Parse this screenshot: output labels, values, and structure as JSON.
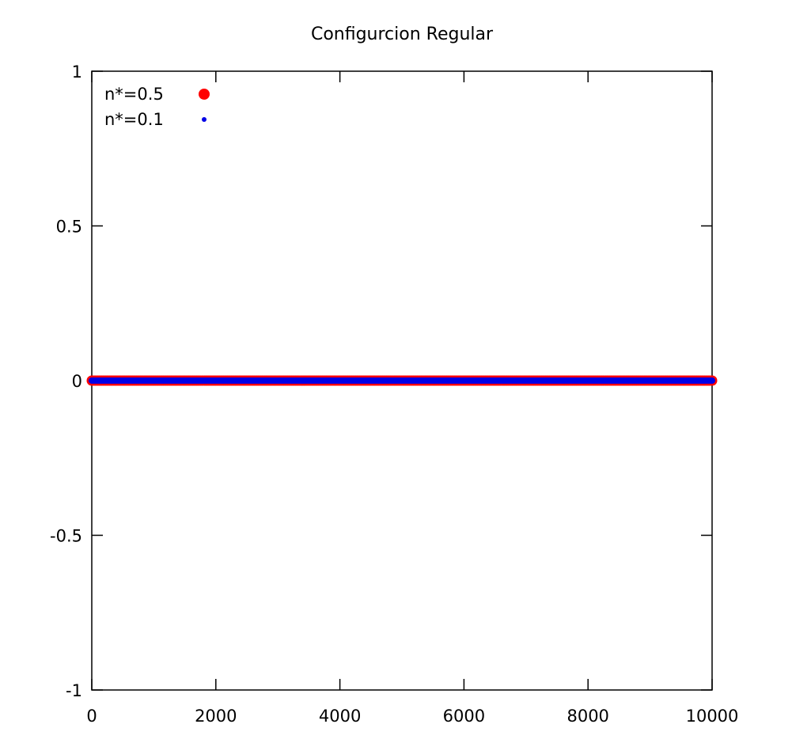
{
  "chart_data": {
    "type": "scatter",
    "title": "Configurcion Regular",
    "xlabel": "",
    "ylabel": "",
    "xlim": [
      0,
      10000
    ],
    "ylim": [
      -1,
      1
    ],
    "x_ticks": [
      0,
      2000,
      4000,
      6000,
      8000,
      10000
    ],
    "x_tick_labels": [
      "0",
      "2000",
      "4000",
      "6000",
      "8000",
      "10000"
    ],
    "y_ticks": [
      1,
      0.5,
      0,
      -0.5,
      -1
    ],
    "y_tick_labels": [
      "1",
      "0.5",
      "0",
      "-0.5",
      "-1"
    ],
    "grid": false,
    "legend_position": "top-left",
    "series": [
      {
        "name": "n*=0.5",
        "color": "#ff0000",
        "marker": "large-dot",
        "x_range": [
          0,
          10000
        ],
        "y_constant": 0
      },
      {
        "name": "n*=0.1",
        "color": "#0000e6",
        "marker": "small-dot",
        "x_range": [
          0,
          10000
        ],
        "y_constant": 0
      }
    ]
  }
}
